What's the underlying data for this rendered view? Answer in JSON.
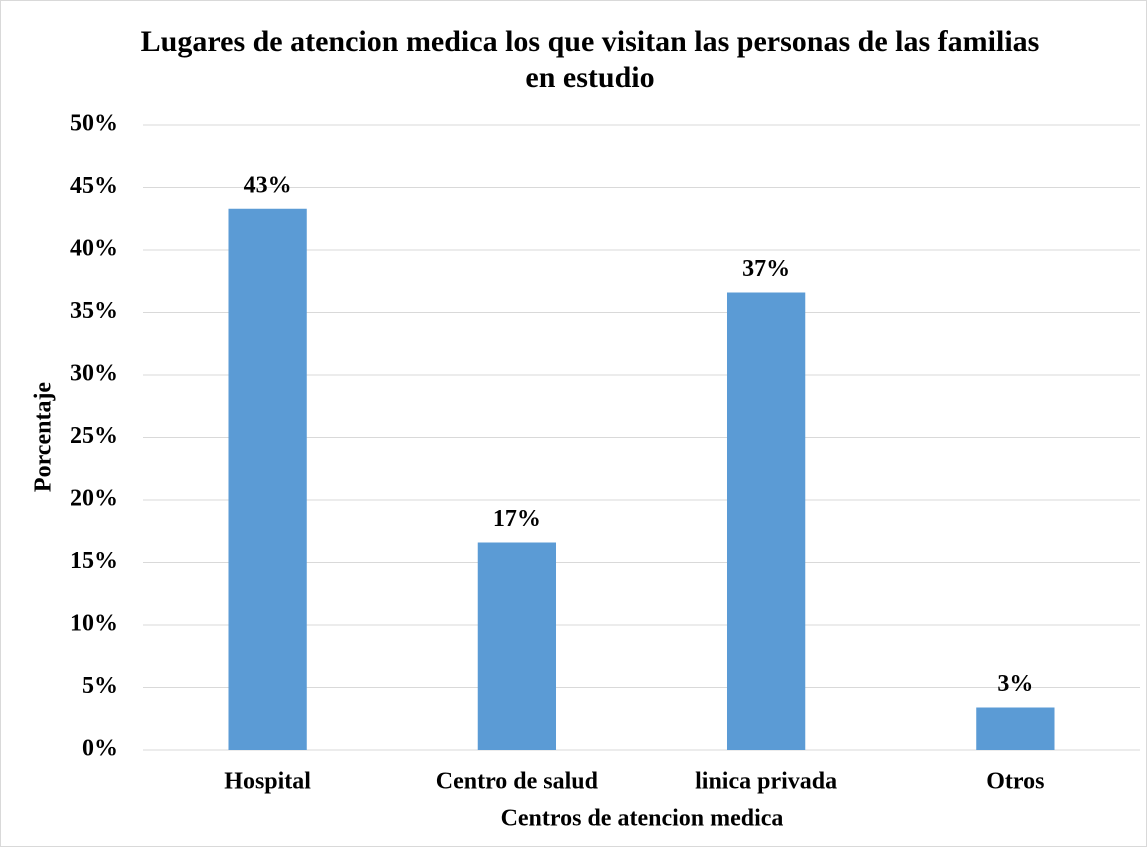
{
  "chart_data": {
    "type": "bar",
    "title": "Lugares de atencion medica los que visitan las personas de las familias en estudio",
    "x_label": "Centros de atencion medica",
    "y_label": "Porcentaje",
    "categories": [
      "Hospital",
      "Centro de salud",
      "linica privada",
      "Otros"
    ],
    "values": [
      43.3,
      16.6,
      36.6,
      3.4
    ],
    "value_labels": [
      "43%",
      "17%",
      "37%",
      "3%"
    ],
    "color": "#5b9bd5",
    "ylim": [
      0,
      50
    ],
    "yticks": [
      {
        "value": 0,
        "label": "0%"
      },
      {
        "value": 5,
        "label": "5%"
      },
      {
        "value": 10,
        "label": "10%"
      },
      {
        "value": 15,
        "label": "15%"
      },
      {
        "value": 20,
        "label": "20%"
      },
      {
        "value": 25,
        "label": "25%"
      },
      {
        "value": 30,
        "label": "30%"
      },
      {
        "value": 35,
        "label": "35%"
      },
      {
        "value": 40,
        "label": "40%"
      },
      {
        "value": 45,
        "label": "45%"
      },
      {
        "value": 50,
        "label": "50%"
      }
    ],
    "grid": true
  }
}
